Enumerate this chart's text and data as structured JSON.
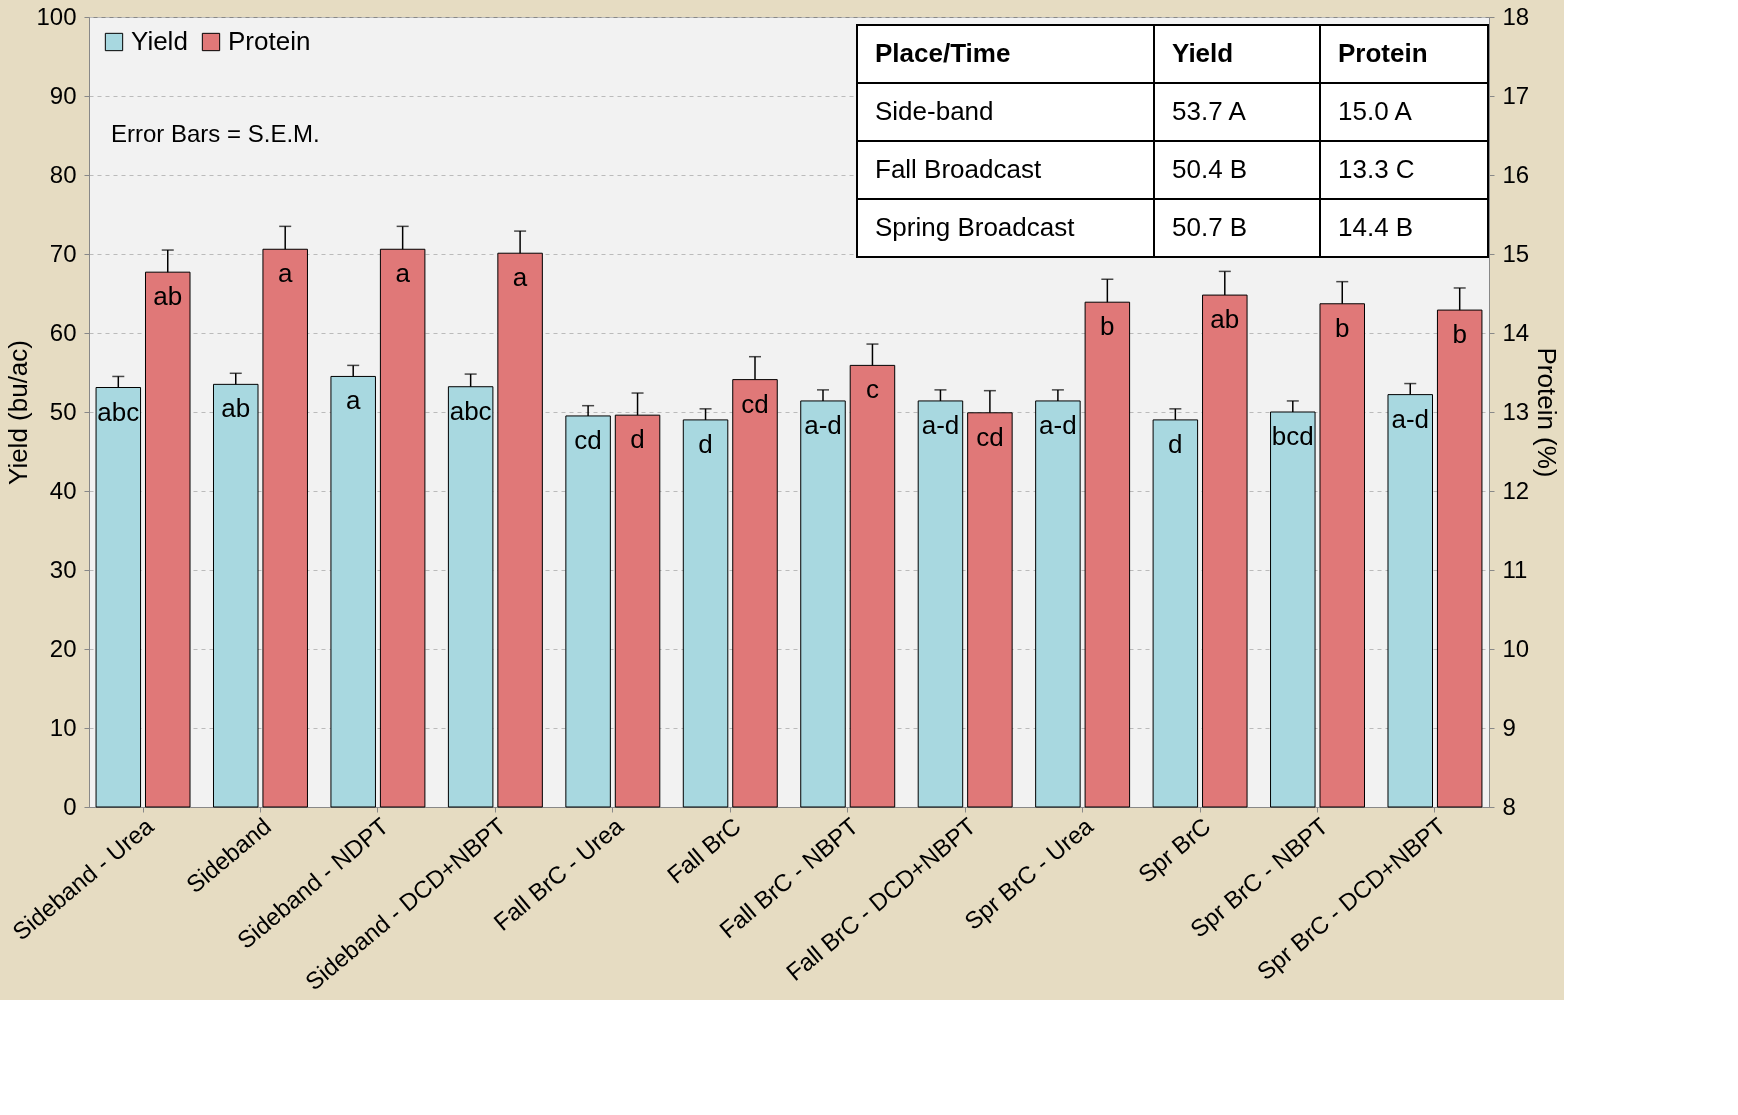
{
  "chart_data": {
    "type": "bar",
    "categories": [
      "Sideband - Urea",
      "Sideband",
      "Sideband - NDPT",
      "Sideband - DCD+NBPT",
      "Fall BrC - Urea",
      "Fall BrC",
      "Fall BrC - NBPT",
      "Fall BrC - DCD+NBPT",
      "Spr BrC - Urea",
      "Spr BrC",
      "Spr BrC - NBPT",
      "Spr BrC - DCD+NBPT"
    ],
    "series": [
      {
        "name": "Yield",
        "color": "#a8d8e0",
        "values": [
          53.1,
          53.5,
          54.5,
          53.2,
          49.5,
          49.0,
          51.4,
          51.4,
          51.4,
          49.0,
          50.0,
          52.2
        ],
        "errors": [
          [
            53.1,
            54.5
          ],
          [
            53.5,
            54.9
          ],
          [
            54.5,
            55.9
          ],
          [
            53.2,
            54.8
          ],
          [
            49.5,
            50.8
          ],
          [
            49.0,
            50.4
          ],
          [
            51.4,
            52.8
          ],
          [
            51.4,
            52.8
          ],
          [
            51.4,
            52.8
          ],
          [
            49.0,
            50.4
          ],
          [
            50.0,
            51.4
          ],
          [
            52.2,
            53.6
          ]
        ],
        "value_labels": [
          "abc",
          "ab",
          "a",
          "abc",
          "cd",
          "d",
          "a-d",
          "a-d",
          "a-d",
          "d",
          "bcd",
          "a-d"
        ]
      },
      {
        "name": "Protein",
        "color": "#e07878",
        "axis": "y2",
        "values": [
          14.77,
          15.06,
          15.06,
          15.01,
          12.96,
          13.41,
          13.59,
          12.99,
          14.39,
          14.48,
          14.37,
          14.29
        ],
        "errors": [
          [
            14.77,
            15.05
          ],
          [
            15.06,
            15.35
          ],
          [
            15.06,
            15.35
          ],
          [
            15.01,
            15.29
          ],
          [
            12.96,
            13.24
          ],
          [
            13.41,
            13.7
          ],
          [
            13.59,
            13.86
          ],
          [
            12.99,
            13.27
          ],
          [
            14.39,
            14.68
          ],
          [
            14.48,
            14.78
          ],
          [
            14.37,
            14.65
          ],
          [
            14.29,
            14.57
          ]
        ],
        "value_labels": [
          "ab",
          "a",
          "a",
          "a",
          "d",
          "cd",
          "c",
          "cd",
          "b",
          "ab",
          "b",
          "b"
        ]
      }
    ],
    "ylabel": "Yield (bu/ac)",
    "y2label": "Protein (%)",
    "ylim": [
      0,
      100
    ],
    "yticks": [
      0,
      10,
      20,
      30,
      40,
      50,
      60,
      70,
      80,
      90,
      100
    ],
    "y2lim": [
      8,
      18
    ],
    "y2ticks": [
      8,
      9,
      10,
      11,
      12,
      13,
      14,
      15,
      16,
      17,
      18
    ],
    "grid": "y",
    "legend": "top left",
    "annotations": [
      "Error Bars = S.E.M.",
      "Place/Time",
      "Yield",
      "Protein",
      "Side-band",
      "53.7 A",
      "15.0 A",
      "Fall Broadcast",
      "50.4 B",
      "13.3 C",
      "Spring Broadcast",
      "50.7 B",
      "14.4 B"
    ]
  }
}
